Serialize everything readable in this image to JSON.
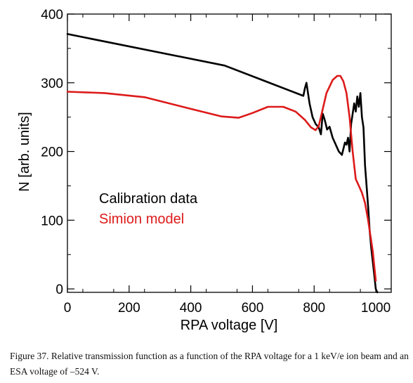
{
  "caption": "Figure 37. Relative transmission function as a function of the RPA voltage for a 1 keV/e ion beam and an ESA voltage of –524 V.",
  "chart_data": {
    "type": "line",
    "title": "",
    "xlabel": "RPA voltage [V]",
    "ylabel": "N [arb. units]",
    "xlim": [
      0,
      1050
    ],
    "ylim": [
      -5,
      400
    ],
    "xticks": [
      0,
      200,
      400,
      600,
      800,
      1000
    ],
    "yticks": [
      0,
      100,
      200,
      300,
      400
    ],
    "xtick_labels": [
      "0",
      "200",
      "400",
      "600",
      "800",
      "1000"
    ],
    "ytick_labels": [
      "0",
      "100",
      "200",
      "300",
      "400"
    ],
    "grid": false,
    "legend_position": "left-middle",
    "series": [
      {
        "name": "Calibration data",
        "color": "#000000",
        "x": [
          0,
          510,
          765,
          770,
          775,
          780,
          785,
          795,
          805,
          815,
          822,
          828,
          835,
          842,
          850,
          860,
          870,
          880,
          890,
          900,
          905,
          910,
          915,
          920,
          925,
          930,
          935,
          940,
          945,
          950,
          955,
          960,
          965,
          970,
          975,
          980,
          985,
          990,
          995,
          1000,
          1005
        ],
        "y": [
          371,
          325,
          281,
          292,
          300,
          285,
          270,
          250,
          240,
          235,
          225,
          255,
          245,
          232,
          236,
          220,
          210,
          200,
          195,
          213,
          210,
          220,
          200,
          240,
          255,
          270,
          258,
          280,
          265,
          285,
          250,
          235,
          180,
          150,
          120,
          85,
          60,
          40,
          20,
          0,
          -5
        ]
      },
      {
        "name": "Simion model",
        "color": "#dd1a1a",
        "x": [
          0,
          120,
          250,
          400,
          500,
          555,
          600,
          650,
          700,
          740,
          770,
          790,
          805,
          815,
          825,
          840,
          860,
          875,
          885,
          895,
          905,
          915,
          925,
          935,
          945,
          955,
          965,
          975,
          990,
          1000
        ],
        "y": [
          287,
          285,
          279,
          262,
          251,
          249,
          256,
          265,
          265,
          258,
          246,
          235,
          231,
          237,
          256,
          285,
          304,
          310,
          310,
          302,
          285,
          250,
          200,
          160,
          150,
          140,
          125,
          100,
          55,
          12
        ]
      }
    ]
  }
}
